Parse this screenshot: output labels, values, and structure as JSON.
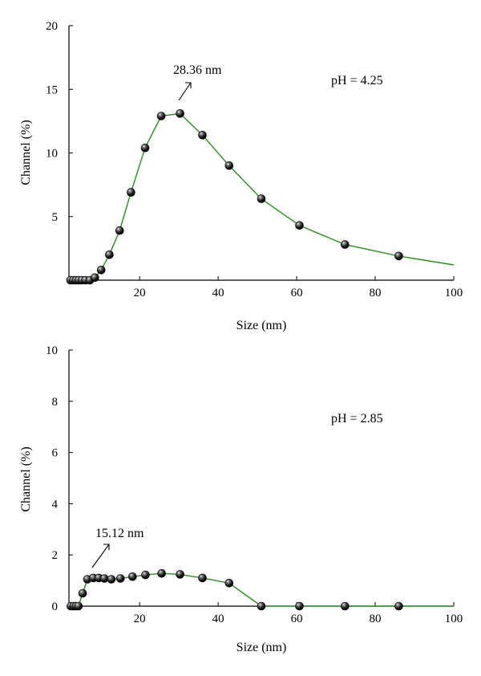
{
  "chart_data": [
    {
      "type": "line",
      "xlabel": "Size (nm)",
      "ylabel": "Channel (%)",
      "xlim": [
        2,
        100
      ],
      "ylim": [
        0,
        20
      ],
      "xticks": [
        20,
        40,
        60,
        80,
        100
      ],
      "yticks": [
        5,
        10,
        15,
        20
      ],
      "grid": false,
      "line_color": "#2e8b22",
      "marker_color": "#000000",
      "annotation_text": "28.36 nm",
      "condition_label": "pH = 4.25",
      "markers": [
        {
          "x": 2.4,
          "y": 0
        },
        {
          "x": 3.1,
          "y": 0
        },
        {
          "x": 3.8,
          "y": 0
        },
        {
          "x": 4.5,
          "y": 0
        },
        {
          "x": 5.3,
          "y": 0
        },
        {
          "x": 6.2,
          "y": 0
        },
        {
          "x": 7.3,
          "y": 0
        },
        {
          "x": 8.6,
          "y": 0.2
        },
        {
          "x": 10.2,
          "y": 0.8
        },
        {
          "x": 12.3,
          "y": 2.0
        },
        {
          "x": 14.9,
          "y": 3.9
        },
        {
          "x": 17.8,
          "y": 6.9
        },
        {
          "x": 21.4,
          "y": 10.4
        },
        {
          "x": 25.5,
          "y": 12.9
        },
        {
          "x": 30.3,
          "y": 13.1
        },
        {
          "x": 36.0,
          "y": 11.4
        },
        {
          "x": 42.8,
          "y": 9.0
        },
        {
          "x": 51.0,
          "y": 6.4
        },
        {
          "x": 60.7,
          "y": 4.3
        },
        {
          "x": 72.3,
          "y": 2.8
        },
        {
          "x": 86.0,
          "y": 1.9
        }
      ],
      "line_end": {
        "x": 100,
        "y": 1.2
      }
    },
    {
      "type": "line",
      "xlabel": "Size (nm)",
      "ylabel": "Channel (%)",
      "xlim": [
        2,
        100
      ],
      "ylim": [
        0,
        10
      ],
      "xticks": [
        20,
        40,
        60,
        80,
        100
      ],
      "yticks": [
        0,
        2,
        4,
        6,
        8,
        10
      ],
      "grid": false,
      "line_color": "#2e8b22",
      "marker_color": "#000000",
      "annotation_text": "15.12 nm",
      "condition_label": "pH = 2.85",
      "markers": [
        {
          "x": 2.5,
          "y": 0
        },
        {
          "x": 3.2,
          "y": 0
        },
        {
          "x": 3.8,
          "y": 0
        },
        {
          "x": 4.4,
          "y": 0
        },
        {
          "x": 5.5,
          "y": 0.5
        },
        {
          "x": 6.7,
          "y": 1.05
        },
        {
          "x": 8.2,
          "y": 1.1
        },
        {
          "x": 9.6,
          "y": 1.1
        },
        {
          "x": 11.0,
          "y": 1.08
        },
        {
          "x": 12.8,
          "y": 1.05
        },
        {
          "x": 15.1,
          "y": 1.08
        },
        {
          "x": 18.2,
          "y": 1.15
        },
        {
          "x": 21.5,
          "y": 1.22
        },
        {
          "x": 25.6,
          "y": 1.28
        },
        {
          "x": 30.3,
          "y": 1.24
        },
        {
          "x": 36.0,
          "y": 1.1
        },
        {
          "x": 42.8,
          "y": 0.9
        },
        {
          "x": 51.0,
          "y": 0
        },
        {
          "x": 60.7,
          "y": 0
        },
        {
          "x": 72.3,
          "y": 0
        },
        {
          "x": 86.0,
          "y": 0
        }
      ],
      "line_end": {
        "x": 100,
        "y": 0
      }
    }
  ]
}
